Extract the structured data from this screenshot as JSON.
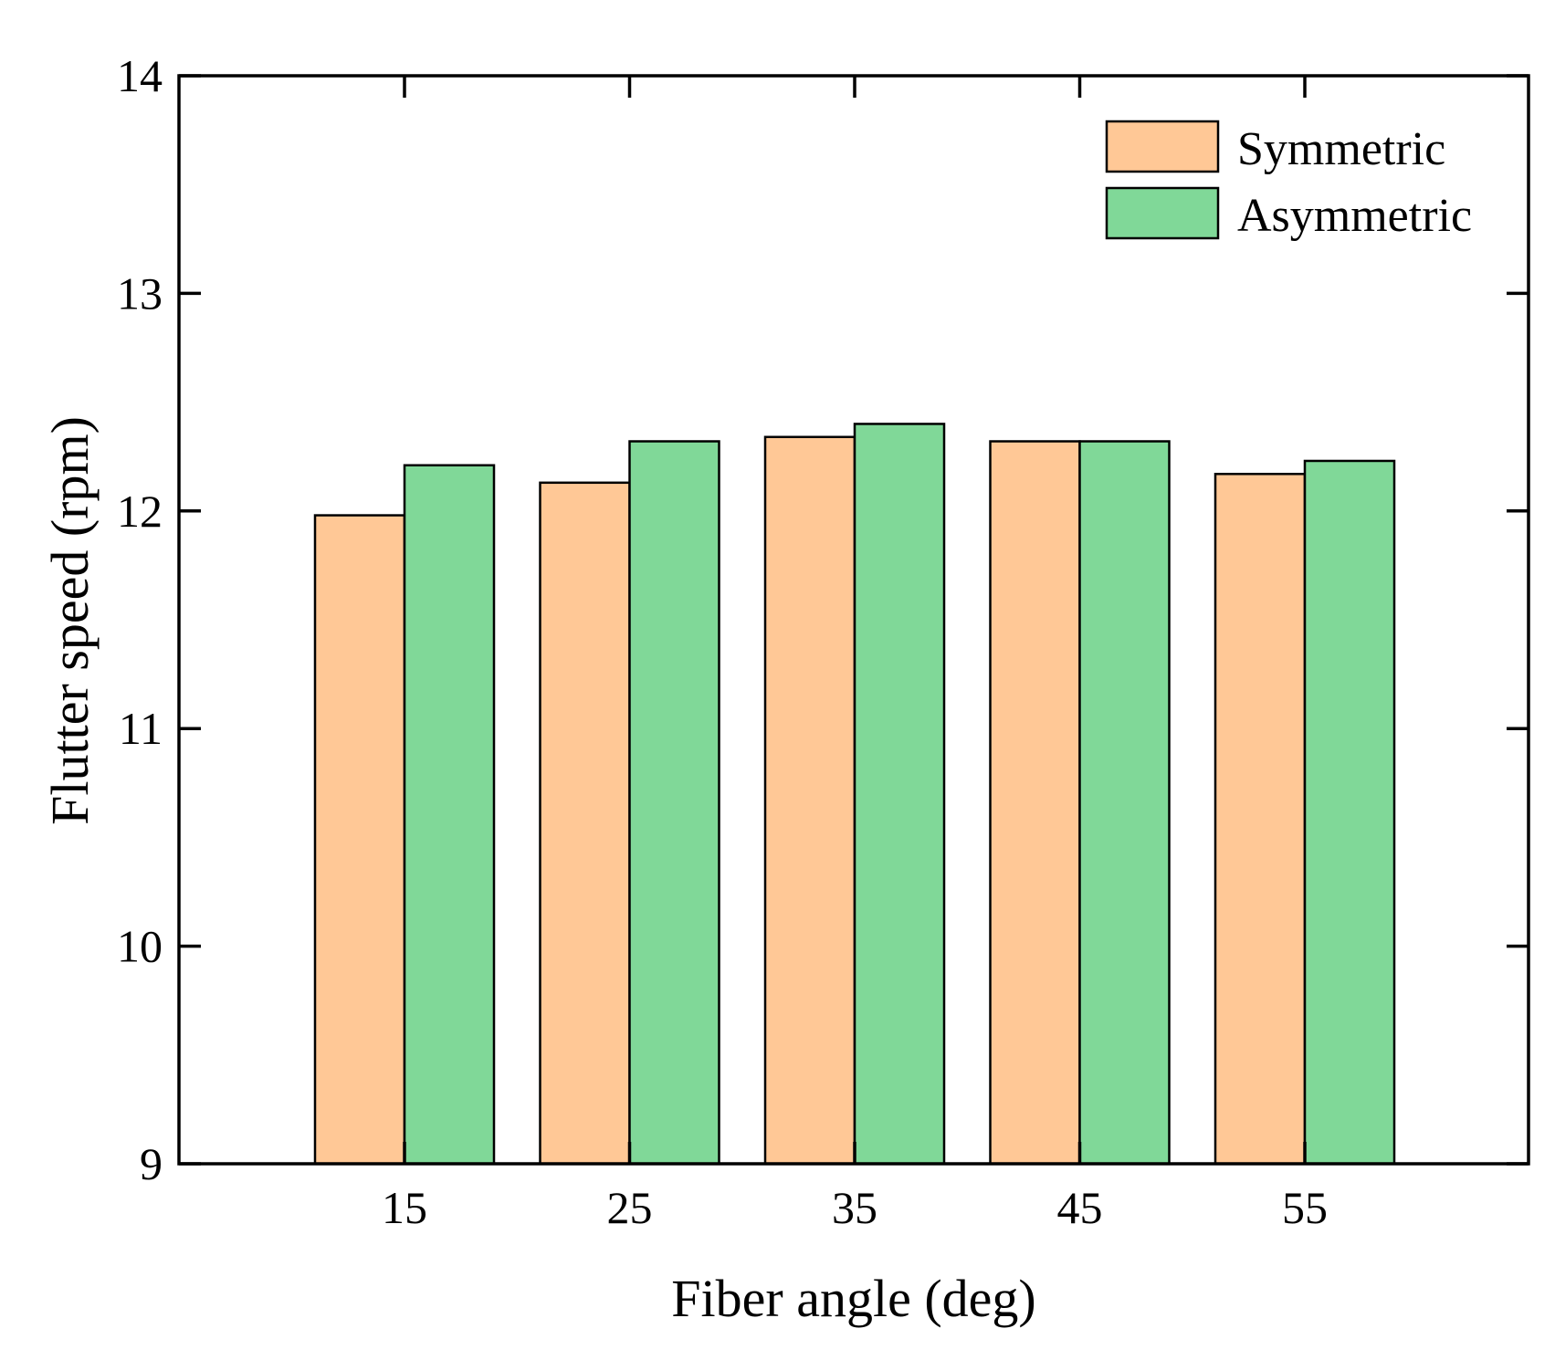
{
  "chart_data": {
    "type": "bar",
    "xlabel": "Fiber angle (deg)",
    "ylabel": "Flutter speed (rpm)",
    "categories": [
      "15",
      "25",
      "35",
      "45",
      "55"
    ],
    "ylim": [
      9,
      14
    ],
    "yticks": [
      "9",
      "10",
      "11",
      "12",
      "13",
      "14"
    ],
    "series": [
      {
        "name": "Symmetric",
        "values": [
          11.98,
          12.13,
          12.34,
          12.32,
          12.17
        ],
        "color": "#FFC896"
      },
      {
        "name": "Asymmetric",
        "values": [
          12.21,
          12.32,
          12.4,
          12.32,
          12.23
        ],
        "color": "#80D898"
      }
    ],
    "legend": "top-right",
    "grid": false,
    "bar_edge_color": "#000000"
  }
}
